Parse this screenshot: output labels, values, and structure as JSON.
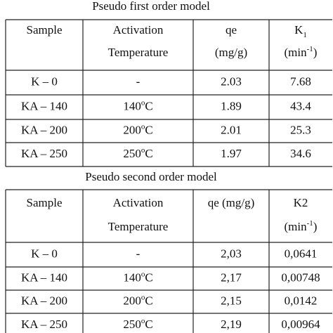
{
  "table1": {
    "title": "Pseudo first order model",
    "header": [
      [
        "Sample"
      ],
      [
        "Activation",
        "Temperature"
      ],
      [
        "qe",
        "(mg/g)"
      ],
      [
        {
          "base": "K",
          "sub": "1"
        },
        {
          "pre": "(min",
          "sup": "-1",
          "post": ")"
        }
      ]
    ],
    "rows": [
      [
        "K – 0",
        "-",
        "2.03",
        "7.68"
      ],
      [
        "KA – 140",
        {
          "num": "140",
          "sup": "o",
          "unit": "C"
        },
        "1.89",
        "43.4"
      ],
      [
        "KA – 200",
        {
          "num": "200",
          "sup": "o",
          "unit": "C"
        },
        "2.01",
        "25.3"
      ],
      [
        "KA – 250",
        {
          "num": "250",
          "sup": "o",
          "unit": "C"
        },
        "1.97",
        "34.6"
      ]
    ]
  },
  "table2": {
    "title": "Pseudo second order model",
    "header": [
      [
        "Sample"
      ],
      [
        "Activation",
        "Temperature"
      ],
      [
        "qe (mg/g)"
      ],
      [
        "K2",
        {
          "pre": "(min",
          "sup": "-1",
          "post": ")"
        }
      ]
    ],
    "rows": [
      [
        "K – 0",
        "-",
        "2,03",
        "0,0641"
      ],
      [
        "KA – 140",
        {
          "num": "140",
          "sup": "o",
          "unit": "C"
        },
        "2,17",
        "0,00748"
      ],
      [
        "KA – 200",
        {
          "num": "200",
          "sup": "o",
          "unit": "C"
        },
        "2,15",
        "0,0142"
      ],
      [
        "KA – 250",
        {
          "num": "250",
          "sup": "o",
          "unit": "C"
        },
        "2,19",
        "0,00964"
      ]
    ]
  }
}
